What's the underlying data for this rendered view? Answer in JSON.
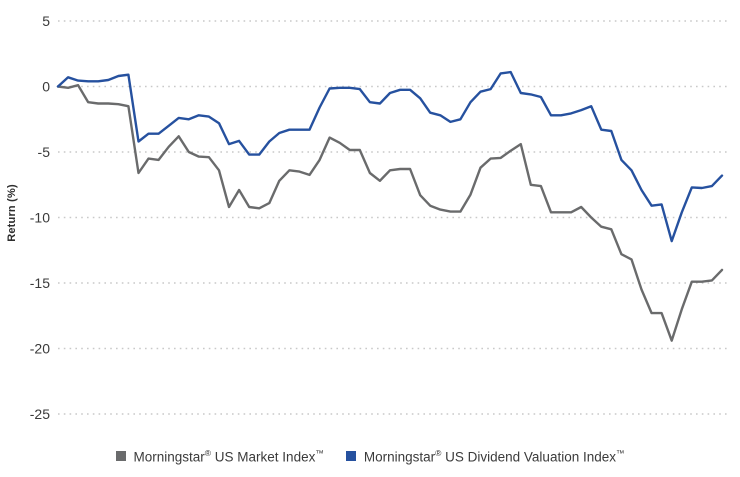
{
  "chart_data": {
    "type": "line",
    "title": "",
    "xlabel": "",
    "ylabel": "Return (%)",
    "ylim": [
      -25,
      5
    ],
    "yticks": [
      5,
      0,
      -5,
      -10,
      -15,
      -20,
      -25
    ],
    "grid": "horizontal-dotted",
    "legend_position": "bottom",
    "x_axis_tick_labels": "none visible",
    "series": [
      {
        "name": "Morningstar® US Market Index™",
        "slug": "market-index",
        "color": "#6a6b6c",
        "values": [
          0,
          -0.1,
          0.1,
          -1.2,
          -1.3,
          -1.3,
          -1.35,
          -1.5,
          -6.6,
          -5.5,
          -5.6,
          -4.6,
          -3.8,
          -5.0,
          -5.35,
          -5.4,
          -6.4,
          -9.2,
          -7.9,
          -9.2,
          -9.3,
          -8.9,
          -7.2,
          -6.4,
          -6.5,
          -6.75,
          -5.6,
          -3.9,
          -4.3,
          -4.85,
          -4.85,
          -6.6,
          -7.2,
          -6.4,
          -6.3,
          -6.3,
          -8.3,
          -9.1,
          -9.4,
          -9.55,
          -9.55,
          -8.25,
          -6.2,
          -5.5,
          -5.45,
          -4.9,
          -4.4,
          -7.5,
          -7.6,
          -9.6,
          -9.6,
          -9.6,
          -9.2,
          -10.0,
          -10.7,
          -10.9,
          -12.8,
          -13.2,
          -15.5,
          -17.3,
          -17.3,
          -19.4,
          -17.0,
          -14.9,
          -14.9,
          -14.8,
          -14.0
        ]
      },
      {
        "name": "Morningstar® US Dividend Valuation Index™",
        "slug": "dividend-valuation-index",
        "color": "#26519f",
        "values": [
          0,
          0.7,
          0.45,
          0.4,
          0.4,
          0.5,
          0.8,
          0.9,
          -4.2,
          -3.6,
          -3.6,
          -3.0,
          -2.4,
          -2.5,
          -2.2,
          -2.3,
          -2.8,
          -4.4,
          -4.15,
          -5.2,
          -5.2,
          -4.2,
          -3.55,
          -3.3,
          -3.3,
          -3.3,
          -1.6,
          -0.15,
          -0.1,
          -0.1,
          -0.2,
          -1.2,
          -1.3,
          -0.5,
          -0.25,
          -0.25,
          -0.9,
          -2.0,
          -2.2,
          -2.7,
          -2.5,
          -1.2,
          -0.4,
          -0.2,
          1.0,
          1.1,
          -0.5,
          -0.6,
          -0.8,
          -2.2,
          -2.2,
          -2.05,
          -1.8,
          -1.5,
          -3.3,
          -3.4,
          -5.6,
          -6.4,
          -7.9,
          -9.1,
          -9.0,
          -11.8,
          -9.6,
          -7.7,
          -7.75,
          -7.6,
          -6.8
        ]
      }
    ]
  },
  "legend": {
    "items": [
      {
        "brand": "Morningstar",
        "reg": "®",
        "rest": " US Market Index",
        "tm": "™"
      },
      {
        "brand": "Morningstar",
        "reg": "®",
        "rest": " US Dividend Valuation Index",
        "tm": "™"
      }
    ]
  }
}
